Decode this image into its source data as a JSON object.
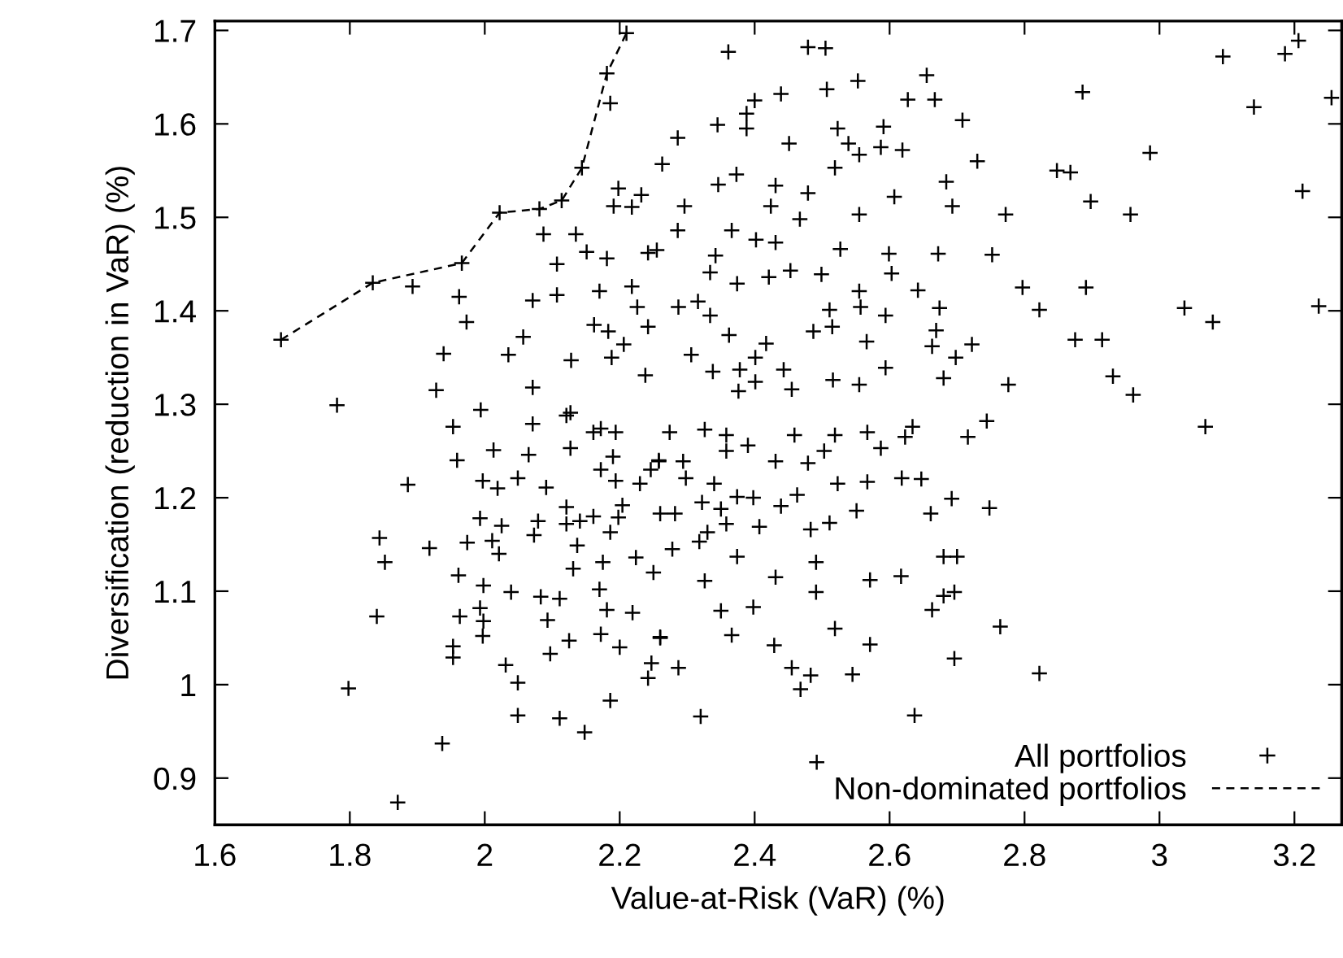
{
  "chart_data": {
    "type": "scatter",
    "xlabel": "Value-at-Risk (VaR) (%)",
    "ylabel": "Diversification (reduction in VaR) (%)",
    "xlim": [
      1.6,
      3.27
    ],
    "ylim": [
      0.85,
      1.71
    ],
    "xticks": [
      1.6,
      1.8,
      2,
      2.2,
      2.4,
      2.6,
      2.8,
      3,
      3.2
    ],
    "yticks": [
      0.9,
      1,
      1.1,
      1.2,
      1.3,
      1.4,
      1.5,
      1.6,
      1.7
    ],
    "grid": false,
    "legend": "bottom right",
    "series": [
      {
        "name": "All portfolios",
        "color": "#000000",
        "marker": "cross",
        "x": [
          1.698,
          1.834,
          1.966,
          2.022,
          2.081,
          2.114,
          2.144,
          2.181,
          2.21,
          1.893,
          1.962,
          1.973,
          1.939,
          1.928,
          1.781,
          1.994,
          2.057,
          2.035,
          2.071,
          2.107,
          2.087,
          2.135,
          2.107,
          2.151,
          2.181,
          2.162,
          2.183,
          2.206,
          2.071,
          2.128,
          2.188,
          2.198,
          2.191,
          2.218,
          2.232,
          2.263,
          2.186,
          2.218,
          2.226,
          2.242,
          2.242,
          2.17,
          2.127,
          2.238,
          2.361,
          2.479,
          2.505,
          2.507,
          2.553,
          2.439,
          2.4,
          2.388,
          2.345,
          2.388,
          2.286,
          2.451,
          2.523,
          2.591,
          2.539,
          2.555,
          2.587,
          2.619,
          2.655,
          2.627,
          2.667,
          2.708,
          2.73,
          2.684,
          2.693,
          2.772,
          2.607,
          2.555,
          2.519,
          2.479,
          2.431,
          2.346,
          2.373,
          2.296,
          2.424,
          2.467,
          2.848,
          2.868,
          2.898,
          2.886,
          2.986,
          2.957,
          3.094,
          3.14,
          3.186,
          3.206,
          3.255,
          3.212,
          2.286,
          2.366,
          2.402,
          2.431,
          2.342,
          2.334,
          2.255,
          2.527,
          2.599,
          2.672,
          2.752,
          2.603,
          2.453,
          2.421,
          2.374,
          2.499,
          2.555,
          2.642,
          2.797,
          2.891,
          2.822,
          3.037,
          3.079,
          3.236,
          2.674,
          2.594,
          2.557,
          2.511,
          2.316,
          2.287,
          2.334,
          2.875,
          2.915,
          2.931,
          2.961,
          2.722,
          2.698,
          2.663,
          2.68,
          2.776,
          2.669,
          2.566,
          2.594,
          2.487,
          2.515,
          2.417,
          2.362,
          2.306,
          2.401,
          2.378,
          2.443,
          2.516,
          2.555,
          2.455,
          2.401,
          2.338,
          2.376,
          3.068,
          2.744,
          2.716,
          2.692,
          2.748,
          2.661,
          2.68,
          2.7,
          2.696,
          2.68,
          2.663,
          2.764,
          2.696,
          2.822,
          2.637,
          2.492,
          2.32,
          2.617,
          2.571,
          2.571,
          2.545,
          2.519,
          2.483,
          2.468,
          2.455,
          2.429,
          2.366,
          2.287,
          2.26,
          2.35,
          2.398,
          2.431,
          2.491,
          2.491,
          2.374,
          2.326,
          2.278,
          2.618,
          2.647,
          2.567,
          2.523,
          2.463,
          2.439,
          2.551,
          2.511,
          2.483,
          2.407,
          2.358,
          2.33,
          2.318,
          2.282,
          2.322,
          2.398,
          2.374,
          2.35,
          2.34,
          2.298,
          2.431,
          2.479,
          2.503,
          2.459,
          2.519,
          2.587,
          2.623,
          2.634,
          2.567,
          2.358,
          2.326,
          2.274,
          2.358,
          2.39,
          2.294,
          2.258,
          1.798,
          1.871,
          1.937,
          1.84,
          1.852,
          1.844,
          1.886,
          1.918,
          1.953,
          1.959,
          1.961,
          1.963,
          1.953,
          1.953,
          1.997,
          1.993,
          1.998,
          1.998,
          1.974,
          1.993,
          2.011,
          2.021,
          2.025,
          1.997,
          2.019,
          2.013,
          2.065,
          2.071,
          2.049,
          2.091,
          2.073,
          2.079,
          2.039,
          2.083,
          2.111,
          2.093,
          2.031,
          2.049,
          2.049,
          2.111,
          2.148,
          2.186,
          2.097,
          2.125,
          2.2,
          2.172,
          2.181,
          2.17,
          2.131,
          2.137,
          2.121,
          2.121,
          2.141,
          2.161,
          2.186,
          2.175,
          2.204,
          2.198,
          2.224,
          2.25,
          2.219,
          2.242,
          2.247,
          2.26,
          2.23,
          2.246,
          2.258,
          2.194,
          2.194,
          2.19,
          2.172,
          2.161,
          2.127,
          2.121,
          2.172,
          2.26
        ],
        "values": [
          1.369,
          1.43,
          1.451,
          1.505,
          1.509,
          1.518,
          1.553,
          1.654,
          1.697,
          1.426,
          1.415,
          1.388,
          1.354,
          1.315,
          1.299,
          1.294,
          1.372,
          1.353,
          1.411,
          1.417,
          1.482,
          1.482,
          1.45,
          1.463,
          1.456,
          1.385,
          1.378,
          1.364,
          1.318,
          1.347,
          1.35,
          1.531,
          1.512,
          1.511,
          1.524,
          1.557,
          1.622,
          1.426,
          1.404,
          1.462,
          1.383,
          1.421,
          1.291,
          1.331,
          1.677,
          1.682,
          1.681,
          1.637,
          1.646,
          1.632,
          1.625,
          1.611,
          1.599,
          1.595,
          1.585,
          1.579,
          1.595,
          1.597,
          1.579,
          1.567,
          1.575,
          1.572,
          1.652,
          1.626,
          1.626,
          1.604,
          1.56,
          1.538,
          1.512,
          1.503,
          1.522,
          1.503,
          1.553,
          1.526,
          1.534,
          1.535,
          1.546,
          1.512,
          1.512,
          1.498,
          1.55,
          1.548,
          1.517,
          1.634,
          1.569,
          1.503,
          1.672,
          1.618,
          1.675,
          1.689,
          1.628,
          1.528,
          1.486,
          1.486,
          1.476,
          1.473,
          1.459,
          1.441,
          1.465,
          1.466,
          1.461,
          1.461,
          1.46,
          1.44,
          1.443,
          1.436,
          1.429,
          1.439,
          1.421,
          1.422,
          1.425,
          1.425,
          1.401,
          1.403,
          1.388,
          1.405,
          1.403,
          1.395,
          1.404,
          1.401,
          1.41,
          1.404,
          1.395,
          1.369,
          1.369,
          1.33,
          1.31,
          1.364,
          1.35,
          1.362,
          1.328,
          1.321,
          1.379,
          1.367,
          1.339,
          1.378,
          1.383,
          1.365,
          1.374,
          1.353,
          1.35,
          1.337,
          1.337,
          1.326,
          1.321,
          1.316,
          1.324,
          1.335,
          1.314,
          1.276,
          1.282,
          1.265,
          1.199,
          1.189,
          1.183,
          1.137,
          1.137,
          1.099,
          1.095,
          1.08,
          1.062,
          1.028,
          1.012,
          0.967,
          0.917,
          0.966,
          1.116,
          1.112,
          1.043,
          1.011,
          1.06,
          1.01,
          0.995,
          1.018,
          1.042,
          1.053,
          1.018,
          1.051,
          1.079,
          1.083,
          1.115,
          1.099,
          1.131,
          1.137,
          1.111,
          1.145,
          1.221,
          1.22,
          1.217,
          1.215,
          1.203,
          1.191,
          1.186,
          1.173,
          1.166,
          1.169,
          1.172,
          1.163,
          1.153,
          1.183,
          1.195,
          1.2,
          1.201,
          1.188,
          1.215,
          1.221,
          1.239,
          1.237,
          1.25,
          1.267,
          1.267,
          1.253,
          1.265,
          1.276,
          1.27,
          1.267,
          1.273,
          1.27,
          1.25,
          1.256,
          1.239,
          1.239,
          0.996,
          0.874,
          0.937,
          1.073,
          1.131,
          1.157,
          1.214,
          1.146,
          1.276,
          1.24,
          1.117,
          1.073,
          1.041,
          1.029,
          1.052,
          1.082,
          1.068,
          1.106,
          1.152,
          1.178,
          1.154,
          1.14,
          1.17,
          1.218,
          1.21,
          1.251,
          1.246,
          1.279,
          1.221,
          1.211,
          1.16,
          1.175,
          1.099,
          1.094,
          1.092,
          1.069,
          1.021,
          1.002,
          0.967,
          0.964,
          0.949,
          0.983,
          1.033,
          1.047,
          1.04,
          1.054,
          1.08,
          1.102,
          1.124,
          1.149,
          1.172,
          1.19,
          1.175,
          1.18,
          1.163,
          1.131,
          1.192,
          1.179,
          1.136,
          1.12,
          1.077,
          1.007,
          1.023,
          1.05,
          1.215,
          1.23,
          1.24,
          1.218,
          1.27,
          1.244,
          1.23,
          1.27,
          1.253,
          1.288,
          1.274,
          1.183
        ]
      },
      {
        "name": "Non-dominated portfolios",
        "type": "line",
        "color": "#000000",
        "marker": "none",
        "line_style": "dashed",
        "x": [
          1.698,
          1.834,
          1.966,
          2.022,
          2.081,
          2.114,
          2.144,
          2.181,
          2.21
        ],
        "values": [
          1.369,
          1.43,
          1.451,
          1.505,
          1.509,
          1.518,
          1.553,
          1.654,
          1.697
        ]
      }
    ]
  }
}
